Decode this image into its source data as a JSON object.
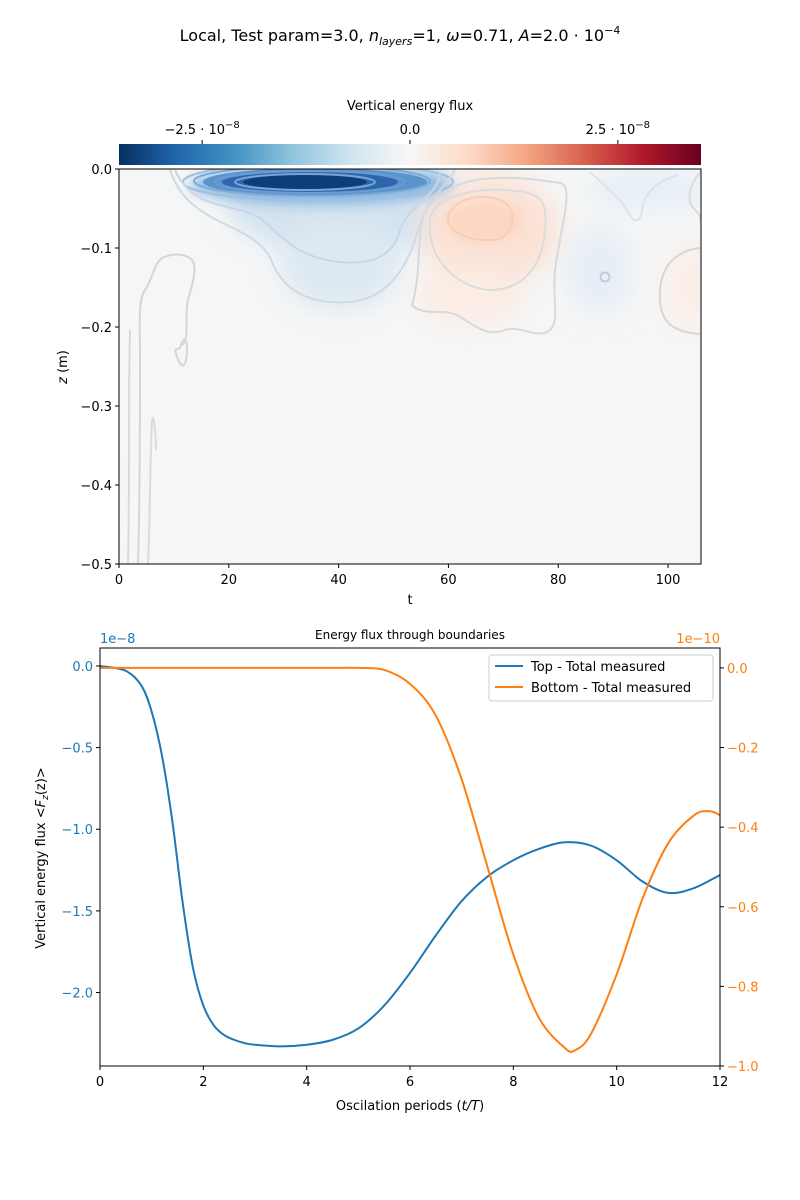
{
  "figure": {
    "suptitle": {
      "prefix": "Local, Test param=3.0, ",
      "n_sym": "n",
      "n_sub": "layers",
      "n_val": "=1, ",
      "omega_sym": "ω",
      "omega_val": "=0.71, ",
      "a_sym": "A",
      "a_val": "=2.0 · 10",
      "a_exp": "−4"
    }
  },
  "chart_data": [
    {
      "type": "heatmap",
      "colorbar": {
        "label": "Vertical energy flux",
        "ticks": [
          {
            "value": -2.5e-08,
            "label_base": "−2.5 · 10",
            "label_exp": "−8"
          },
          {
            "value": 0.0,
            "label_base": "0.0",
            "label_exp": ""
          },
          {
            "value": 2.5e-08,
            "label_base": "2.5 · 10",
            "label_exp": "−8"
          }
        ],
        "vmin": -3.5e-08,
        "vmax": 3.5e-08,
        "colormap": "RdBu_r",
        "colors": [
          "#053061",
          "#2166ac",
          "#4393c3",
          "#92c5de",
          "#d1e5f0",
          "#f7f7f7",
          "#fddbc7",
          "#f4a582",
          "#d6604d",
          "#b2182b",
          "#67001f"
        ]
      },
      "xlabel": "t",
      "ylabel_sym": "z",
      "ylabel_unit": " (m)",
      "xlim": [
        0,
        106
      ],
      "ylim": [
        -0.5,
        0.0
      ],
      "xticks": [
        0,
        20,
        40,
        60,
        80,
        100
      ],
      "xtick_labels": [
        "0",
        "20",
        "40",
        "60",
        "80",
        "100"
      ],
      "yticks": [
        0.0,
        -0.1,
        -0.2,
        -0.3,
        -0.4,
        -0.5
      ],
      "ytick_labels": [
        "0.0",
        "−0.1",
        "−0.2",
        "−0.3",
        "−0.4",
        "−0.5"
      ],
      "features": [
        {
          "kind": "negative",
          "t": 33,
          "z": -0.015,
          "peak": -3.5e-08
        },
        {
          "kind": "negative",
          "t": 40,
          "z": -0.14,
          "peak": -5e-09
        },
        {
          "kind": "positive",
          "t": 67,
          "z": -0.065,
          "peak": 6e-09
        },
        {
          "kind": "positive",
          "t": 66,
          "z": -0.17,
          "peak": 3e-09
        },
        {
          "kind": "negative",
          "t": 89,
          "z": -0.13,
          "peak": -3e-09
        },
        {
          "kind": "positive",
          "t": 103,
          "z": -0.15,
          "peak": 2e-09
        }
      ]
    },
    {
      "type": "line",
      "title": "Energy flux through boundaries",
      "xlabel_base": "Oscilation periods (",
      "xlabel_math": "t/T",
      "xlabel_end": ")",
      "ylabel_left_base": "Vertical energy flux  <",
      "ylabel_left_math": "F",
      "ylabel_left_sub": "z",
      "ylabel_left_end": "(z)>",
      "xlim": [
        0,
        12
      ],
      "xticks": [
        0,
        2,
        4,
        6,
        8,
        10,
        12
      ],
      "xtick_labels": [
        "0",
        "2",
        "4",
        "6",
        "8",
        "10",
        "12"
      ],
      "left_axis": {
        "offset_label": "1e−8",
        "color": "#1f77b4",
        "ylim": [
          -2.45,
          0.11
        ],
        "ticks": [
          0.0,
          -0.5,
          -1.0,
          -1.5,
          -2.0
        ],
        "tick_labels": [
          "0.0",
          "−0.5",
          "−1.0",
          "−1.5",
          "−2.0"
        ]
      },
      "right_axis": {
        "offset_label": "1e−10",
        "color": "#ff7f0e",
        "ylim": [
          -1.0,
          0.05
        ],
        "ticks": [
          0.0,
          -0.2,
          -0.4,
          -0.6,
          -0.8,
          -1.0
        ],
        "tick_labels": [
          "0.0",
          "−0.2",
          "−0.4",
          "−0.6",
          "−0.8",
          "−1.0"
        ]
      },
      "legend": "top-right",
      "series": [
        {
          "name": "Top - Total measured",
          "axis": "left",
          "color": "#1f77b4",
          "x": [
            0,
            0.5,
            0.8,
            1.0,
            1.2,
            1.4,
            1.6,
            1.8,
            2.0,
            2.2,
            2.4,
            2.6,
            2.8,
            3.0,
            3.5,
            4.0,
            4.5,
            5.0,
            5.5,
            6.0,
            6.5,
            7.0,
            7.5,
            8.0,
            8.5,
            9.0,
            9.5,
            10.0,
            10.5,
            11.0,
            11.5,
            12.0
          ],
          "y": [
            0.0,
            -0.03,
            -0.12,
            -0.28,
            -0.55,
            -0.95,
            -1.45,
            -1.85,
            -2.08,
            -2.2,
            -2.26,
            -2.29,
            -2.31,
            -2.32,
            -2.33,
            -2.32,
            -2.29,
            -2.22,
            -2.08,
            -1.88,
            -1.65,
            -1.44,
            -1.29,
            -1.19,
            -1.12,
            -1.08,
            -1.1,
            -1.19,
            -1.32,
            -1.39,
            -1.36,
            -1.28
          ]
        },
        {
          "name": "Bottom - Total measured",
          "axis": "right",
          "color": "#ff7f0e",
          "x": [
            0,
            1,
            2,
            3,
            4,
            4.5,
            5.0,
            5.5,
            6.0,
            6.5,
            7.0,
            7.5,
            8.0,
            8.5,
            9.0,
            9.2,
            9.5,
            10.0,
            10.5,
            11.0,
            11.5,
            11.8,
            12.0
          ],
          "y": [
            0.0,
            0.0,
            0.0,
            0.0,
            0.0,
            0.0,
            0.0,
            -0.005,
            -0.04,
            -0.12,
            -0.28,
            -0.5,
            -0.72,
            -0.88,
            -0.955,
            -0.96,
            -0.92,
            -0.77,
            -0.58,
            -0.44,
            -0.37,
            -0.36,
            -0.37
          ]
        }
      ]
    }
  ]
}
